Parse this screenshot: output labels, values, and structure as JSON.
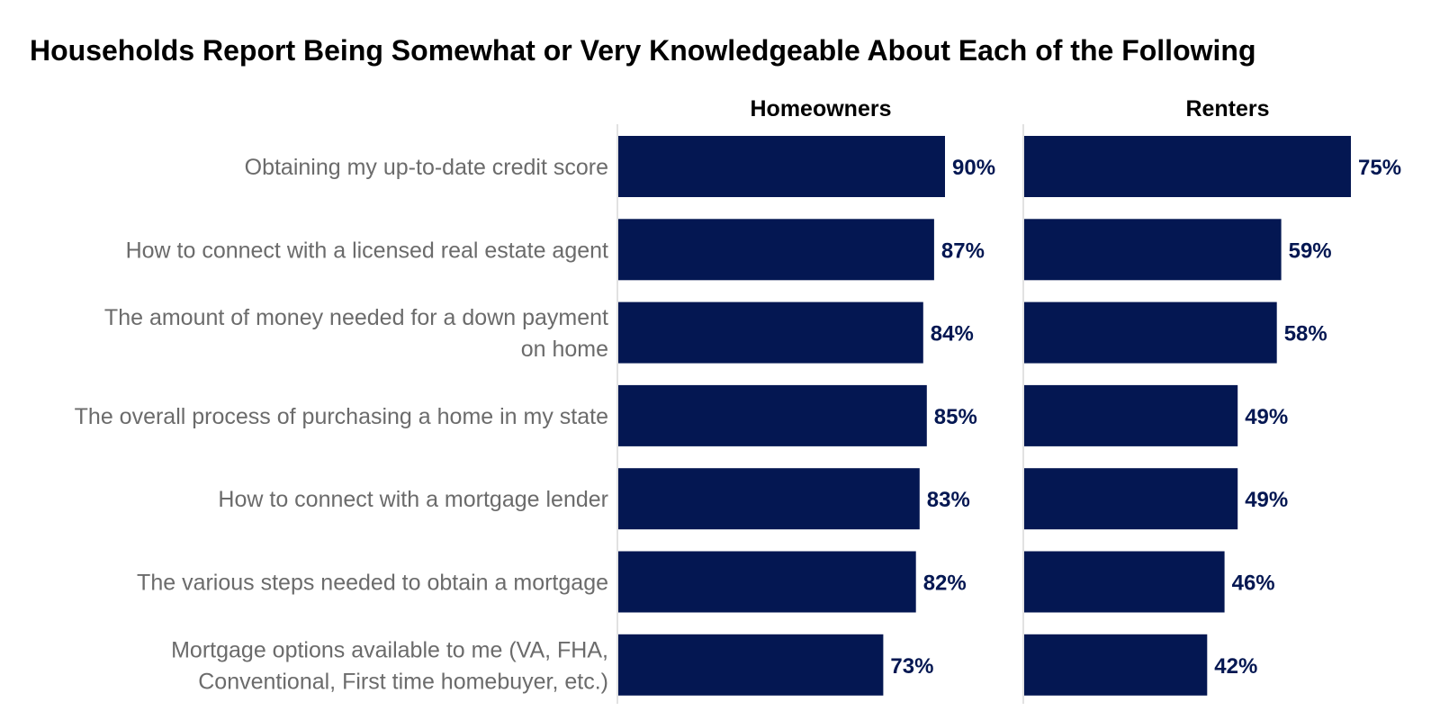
{
  "chart_data": {
    "type": "bar",
    "orientation": "horizontal",
    "title": "Households Report Being Somewhat or Very Knowledgeable About Each of the Following",
    "categories": [
      [
        "Obtaining my up-to-date credit score"
      ],
      [
        "How to connect with a licensed real estate agent"
      ],
      [
        "The amount of money needed for a down payment",
        "on home"
      ],
      [
        "The overall process of purchasing a home in my state"
      ],
      [
        "How to connect with a mortgage lender"
      ],
      [
        "The various steps needed to obtain a mortgage"
      ],
      [
        "Mortgage options available to me (VA, FHA,",
        "Conventional, First time homebuyer, etc.)"
      ]
    ],
    "series": [
      {
        "name": "Homeowners",
        "values": [
          90,
          87,
          84,
          85,
          83,
          82,
          73
        ]
      },
      {
        "name": "Renters",
        "values": [
          75,
          59,
          58,
          49,
          49,
          46,
          42
        ]
      }
    ],
    "value_suffix": "%",
    "xlim": [
      0,
      100
    ],
    "grid": false,
    "legend": "none",
    "bar_color": "#041752",
    "label_color": "#041752",
    "category_color": "#6b6b6b",
    "axis_color": "#d9d9d9"
  }
}
